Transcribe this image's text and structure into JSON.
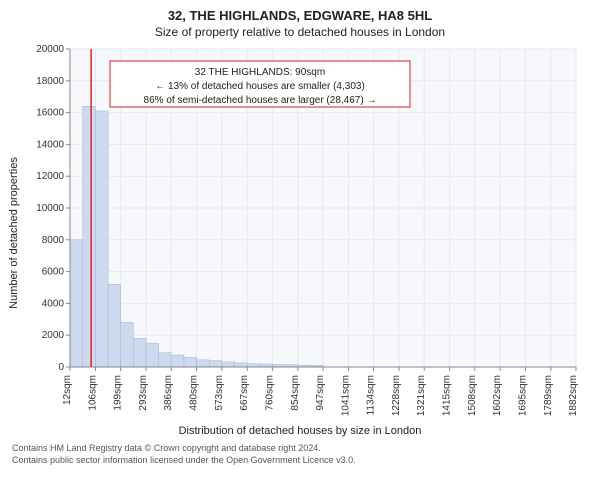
{
  "title_main": "32, THE HIGHLANDS, EDGWARE, HA8 5HL",
  "title_sub": "Size of property relative to detached houses in London",
  "y_label": "Number of detached properties",
  "x_label": "Distribution of detached houses by size in London",
  "footnote_line1": "Contains HM Land Registry data © Crown copyright and database right 2024.",
  "footnote_line2": "Contains public sector information licensed under the Open Government Licence v3.0.",
  "callout": {
    "line1": "32 THE HIGHLANDS: 90sqm",
    "line2": "← 13% of detached houses are smaller (4,303)",
    "line3": "86% of semi-detached houses are larger (28,467) →"
  },
  "chart": {
    "type": "histogram",
    "plot_bg": "#f6f8fc",
    "grid_color": "#e4e8f0",
    "bar_fill": "#cdd9ee",
    "bar_stroke": "#9fb4d8",
    "marker_color": "#d22",
    "axis_fontsize": 10,
    "label_fontsize": 11,
    "title_fontsize": 13,
    "ylim": [
      0,
      20000
    ],
    "ytick_step": 2000,
    "xlim": [
      12,
      1882
    ],
    "xtick_labels": [
      "12sqm",
      "106sqm",
      "199sqm",
      "293sqm",
      "386sqm",
      "480sqm",
      "573sqm",
      "667sqm",
      "760sqm",
      "854sqm",
      "947sqm",
      "1041sqm",
      "1134sqm",
      "1228sqm",
      "1321sqm",
      "1415sqm",
      "1508sqm",
      "1602sqm",
      "1695sqm",
      "1789sqm",
      "1882sqm"
    ],
    "xtick_values": [
      12,
      106,
      199,
      293,
      386,
      480,
      573,
      667,
      760,
      854,
      947,
      1041,
      1134,
      1228,
      1321,
      1415,
      1508,
      1602,
      1695,
      1789,
      1882
    ],
    "bars": [
      {
        "x0": 12,
        "x1": 59,
        "y": 8000
      },
      {
        "x0": 59,
        "x1": 106,
        "y": 16400
      },
      {
        "x0": 106,
        "x1": 153,
        "y": 16100
      },
      {
        "x0": 153,
        "x1": 199,
        "y": 5200
      },
      {
        "x0": 199,
        "x1": 246,
        "y": 2800
      },
      {
        "x0": 246,
        "x1": 293,
        "y": 1800
      },
      {
        "x0": 293,
        "x1": 340,
        "y": 1500
      },
      {
        "x0": 340,
        "x1": 386,
        "y": 900
      },
      {
        "x0": 386,
        "x1": 433,
        "y": 750
      },
      {
        "x0": 433,
        "x1": 480,
        "y": 600
      },
      {
        "x0": 480,
        "x1": 527,
        "y": 450
      },
      {
        "x0": 527,
        "x1": 573,
        "y": 400
      },
      {
        "x0": 573,
        "x1": 620,
        "y": 320
      },
      {
        "x0": 620,
        "x1": 667,
        "y": 260
      },
      {
        "x0": 667,
        "x1": 714,
        "y": 210
      },
      {
        "x0": 714,
        "x1": 760,
        "y": 190
      },
      {
        "x0": 760,
        "x1": 807,
        "y": 160
      },
      {
        "x0": 807,
        "x1": 854,
        "y": 140
      },
      {
        "x0": 854,
        "x1": 901,
        "y": 120
      },
      {
        "x0": 901,
        "x1": 947,
        "y": 100
      }
    ],
    "marker_x": 90
  }
}
